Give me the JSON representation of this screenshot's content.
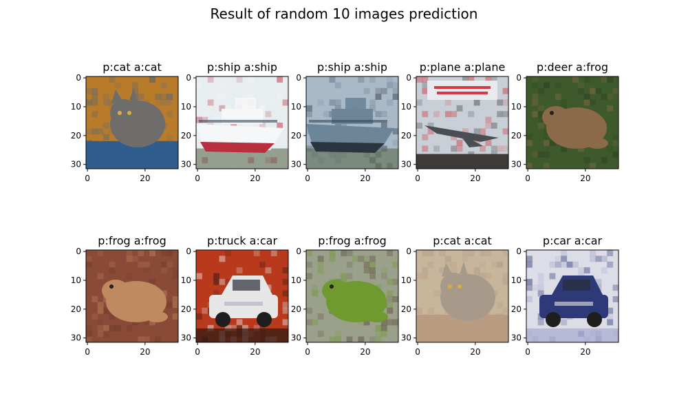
{
  "figure": {
    "title": "Result of random 10 images prediction"
  },
  "chart_data": {
    "type": "image-grid",
    "title": "Result of random 10 images prediction",
    "rows": 2,
    "cols": 5,
    "image_size": [
      32,
      32
    ],
    "xticks": [
      0,
      20
    ],
    "yticks": [
      0,
      10,
      20,
      30
    ],
    "xlim": [
      -0.5,
      31.5
    ],
    "ylim": [
      31.5,
      -0.5
    ],
    "panels": [
      {
        "title": "p:cat a:cat",
        "predicted": "cat",
        "actual": "cat",
        "icon": "cat-photo",
        "colors": {
          "background": "#b87b2a",
          "accent": "#6f6c6c",
          "base": "#2f5e8e"
        }
      },
      {
        "title": "p:ship a:ship",
        "predicted": "ship",
        "actual": "ship",
        "icon": "ship-photo",
        "colors": {
          "background": "#e8edf0",
          "accent": "#f5f7f8",
          "base": "#b92f3e"
        }
      },
      {
        "title": "p:ship a:ship",
        "predicted": "ship",
        "actual": "ship",
        "icon": "ship-photo",
        "colors": {
          "background": "#a9b9c8",
          "accent": "#6c8599",
          "base": "#2a3540"
        }
      },
      {
        "title": "p:plane a:plane",
        "predicted": "plane",
        "actual": "plane",
        "icon": "plane-photo",
        "colors": {
          "background": "#c9cfd6",
          "accent": "#d23a45",
          "base": "#4a4e52"
        }
      },
      {
        "title": "p:deer a:frog",
        "predicted": "deer",
        "actual": "frog",
        "icon": "frog-photo",
        "colors": {
          "background": "#3e5a2c",
          "accent": "#8a6a48",
          "base": "#2a3a1f"
        }
      },
      {
        "title": "p:frog a:frog",
        "predicted": "frog",
        "actual": "frog",
        "icon": "frog-photo",
        "colors": {
          "background": "#8a4a38",
          "accent": "#c08a60",
          "base": "#6a3a2a"
        }
      },
      {
        "title": "p:truck a:car",
        "predicted": "truck",
        "actual": "car",
        "icon": "car-photo",
        "colors": {
          "background": "#b8391c",
          "accent": "#e6e6e6",
          "base": "#2a1a14"
        }
      },
      {
        "title": "p:frog a:frog",
        "predicted": "frog",
        "actual": "frog",
        "icon": "frog-photo",
        "colors": {
          "background": "#9aa08a",
          "accent": "#6f9a30",
          "base": "#5a4a3a"
        }
      },
      {
        "title": "p:cat a:cat",
        "predicted": "cat",
        "actual": "cat",
        "icon": "cat-photo",
        "colors": {
          "background": "#c7b59c",
          "accent": "#a89a8a",
          "base": "#b99c82"
        }
      },
      {
        "title": "p:car a:car",
        "predicted": "car",
        "actual": "car",
        "icon": "car-photo",
        "colors": {
          "background": "#dcdde6",
          "accent": "#2e3a78",
          "base": "#a8aad0"
        }
      }
    ]
  }
}
